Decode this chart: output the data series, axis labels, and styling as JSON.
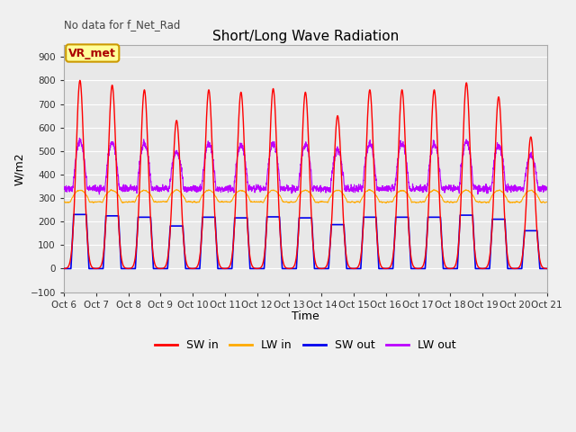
{
  "title": "Short/Long Wave Radiation",
  "xlabel": "Time",
  "ylabel": "W/m2",
  "ylim": [
    -100,
    950
  ],
  "xlim": [
    0,
    15
  ],
  "x_tick_labels": [
    "Oct 6",
    "Oct 7",
    "Oct 8",
    "Oct 9",
    "Oct 10",
    "Oct 11",
    "Oct 12",
    "Oct 13",
    "Oct 14",
    "Oct 15",
    "Oct 16",
    "Oct 17",
    "Oct 18",
    "Oct 19",
    "Oct 20",
    "Oct 21"
  ],
  "annotation_text": "No data for f_Net_Rad",
  "legend_label": "VR_met",
  "colors": {
    "SW_in": "#ff0000",
    "LW_in": "#ffaa00",
    "SW_out": "#0000ee",
    "LW_out": "#bb00ff"
  },
  "background_color": "#e8e8e8",
  "grid_color": "#ffffff",
  "legend_box_color": "#ffff99",
  "legend_box_edge": "#cc9900"
}
